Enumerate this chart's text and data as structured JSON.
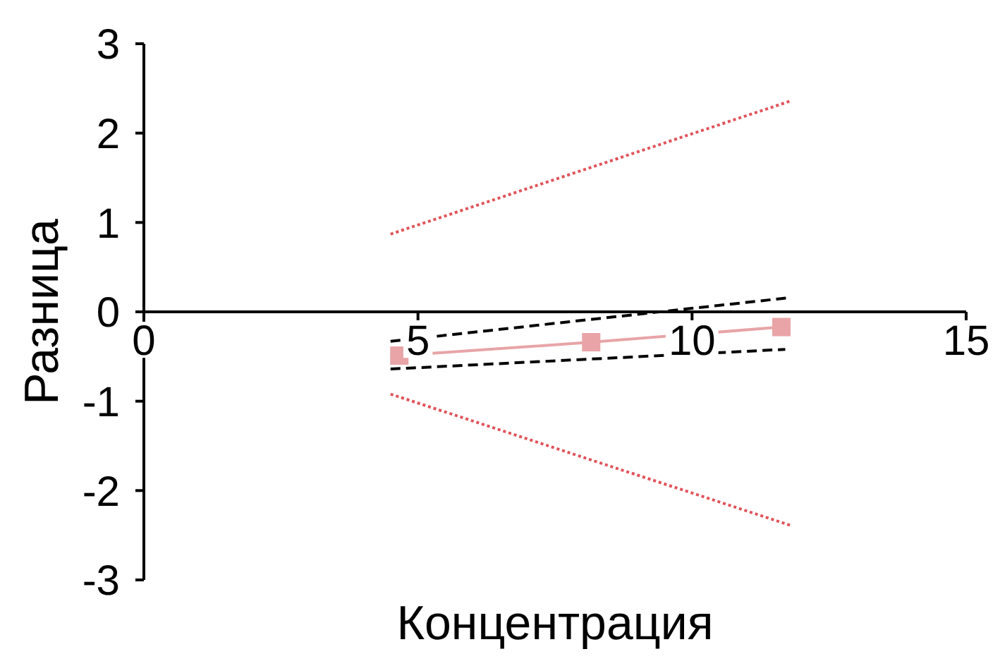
{
  "chart_data": {
    "type": "line",
    "xlabel": "Концентрация",
    "ylabel": "Разница",
    "xlim": [
      0,
      15
    ],
    "xticks": [
      0,
      5,
      10,
      15
    ],
    "ylim": [
      -3,
      3
    ],
    "yticks": [
      -3,
      -2,
      -1,
      0,
      1,
      2,
      3
    ],
    "series": [
      {
        "x": [
          4.66,
          8.16,
          11.63
        ],
        "values": [
          -0.49,
          -0.34,
          -0.17
        ],
        "color": "#e8a4a7",
        "marker": "square",
        "line_style": "solid"
      },
      {
        "x": [
          4.5,
          11.8
        ],
        "values": [
          0.87,
          2.36
        ],
        "color": "#e0535a",
        "marker": "none",
        "line_style": "dotted"
      },
      {
        "x": [
          4.5,
          11.8
        ],
        "values": [
          -0.92,
          -2.39
        ],
        "color": "#e0535a",
        "marker": "none",
        "line_style": "dotted"
      },
      {
        "x": [
          4.5,
          11.8
        ],
        "values": [
          -0.33,
          0.16
        ],
        "color": "#000000",
        "marker": "none",
        "line_style": "dashed"
      },
      {
        "x": [
          4.5,
          11.7
        ],
        "values": [
          -0.64,
          -0.42
        ],
        "color": "#000000",
        "marker": "none",
        "line_style": "dashed"
      }
    ]
  }
}
